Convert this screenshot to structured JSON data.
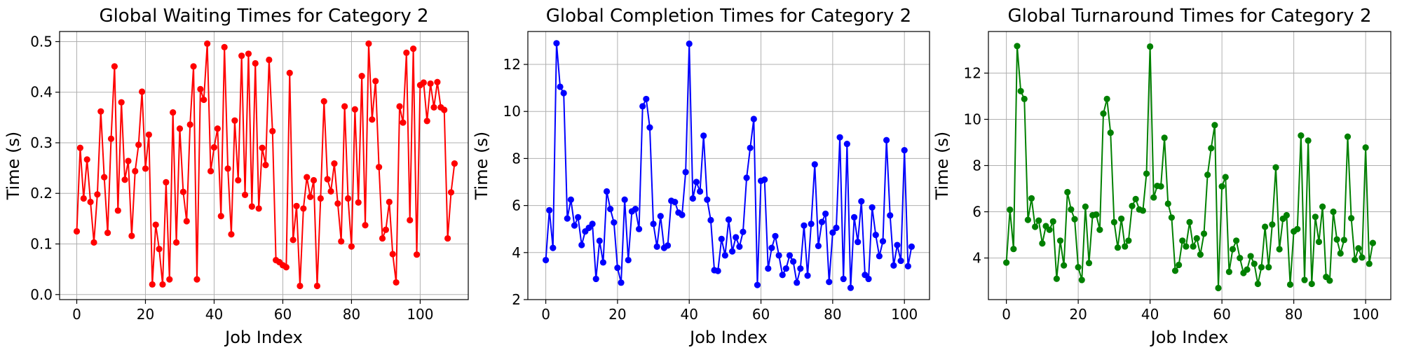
{
  "chart_data": [
    {
      "type": "line",
      "title": "Global Waiting Times for Category 2",
      "xlabel": "Job Index",
      "ylabel": "Time (s)",
      "xlim": [
        -5,
        114
      ],
      "ylim": [
        -0.01,
        0.52
      ],
      "xticks": [
        0,
        20,
        40,
        60,
        80,
        100
      ],
      "yticks": [
        0.0,
        0.1,
        0.2,
        0.3,
        0.4,
        0.5
      ],
      "ytick_decimals": 1,
      "grid": true,
      "series": [
        {
          "color": "#ff0000",
          "marker": "circle",
          "values": [
            0.125,
            0.29,
            0.19,
            0.267,
            0.183,
            0.103,
            0.198,
            0.362,
            0.232,
            0.122,
            0.308,
            0.451,
            0.166,
            0.38,
            0.227,
            0.264,
            0.116,
            0.244,
            0.296,
            0.401,
            0.249,
            0.316,
            0.02,
            0.138,
            0.09,
            0.02,
            0.222,
            0.03,
            0.36,
            0.103,
            0.328,
            0.203,
            0.145,
            0.336,
            0.451,
            0.03,
            0.406,
            0.385,
            0.496,
            0.244,
            0.291,
            0.328,
            0.155,
            0.489,
            0.249,
            0.119,
            0.344,
            0.226,
            0.472,
            0.197,
            0.476,
            0.174,
            0.457,
            0.17,
            0.29,
            0.256,
            0.464,
            0.323,
            0.068,
            0.064,
            0.058,
            0.054,
            0.438,
            0.108,
            0.175,
            0.017,
            0.17,
            0.232,
            0.193,
            0.226,
            0.017,
            0.19,
            0.382,
            0.228,
            0.204,
            0.259,
            0.18,
            0.105,
            0.372,
            0.19,
            0.095,
            0.366,
            0.182,
            0.432,
            0.137,
            0.496,
            0.346,
            0.422,
            0.252,
            0.111,
            0.128,
            0.183,
            0.08,
            0.024,
            0.372,
            0.34,
            0.478,
            0.147,
            0.486,
            0.079,
            0.414,
            0.419,
            0.343,
            0.417,
            0.37,
            0.42,
            0.37,
            0.365,
            0.111,
            0.202,
            0.259
          ]
        }
      ]
    },
    {
      "type": "line",
      "title": "Global Completion Times for Category 2",
      "xlabel": "Job Index",
      "ylabel": "Time (s)",
      "xlim": [
        -5,
        107
      ],
      "ylim": [
        2.0,
        13.4
      ],
      "xticks": [
        0,
        20,
        40,
        60,
        80,
        100
      ],
      "yticks": [
        2,
        4,
        6,
        8,
        10,
        12
      ],
      "ytick_decimals": 0,
      "grid": true,
      "series": [
        {
          "color": "#0000ff",
          "marker": "circle",
          "values": [
            3.68,
            5.8,
            4.2,
            12.9,
            11.05,
            10.78,
            5.45,
            6.25,
            5.15,
            5.5,
            4.32,
            4.9,
            5.05,
            5.22,
            2.88,
            4.5,
            3.58,
            6.6,
            5.85,
            5.28,
            3.35,
            2.72,
            6.25,
            3.68,
            5.75,
            5.85,
            5.0,
            10.22,
            10.53,
            9.32,
            5.22,
            4.25,
            5.55,
            4.2,
            4.3,
            6.2,
            6.15,
            5.7,
            5.6,
            7.42,
            12.88,
            6.3,
            7.0,
            6.6,
            8.97,
            6.25,
            5.38,
            3.25,
            3.22,
            4.58,
            3.88,
            5.4,
            4.05,
            4.65,
            4.25,
            4.88,
            7.18,
            8.45,
            9.68,
            2.62,
            7.05,
            7.1,
            3.32,
            4.2,
            4.7,
            3.88,
            3.05,
            3.32,
            3.88,
            3.62,
            2.72,
            3.32,
            5.15,
            3.02,
            5.22,
            7.75,
            4.28,
            5.3,
            5.65,
            2.75,
            4.85,
            5.05,
            8.9,
            2.88,
            8.62,
            2.5,
            5.5,
            4.45,
            6.18,
            3.05,
            2.88,
            5.92,
            4.75,
            3.85,
            4.48,
            8.78,
            5.58,
            3.45,
            4.32,
            3.65,
            8.35,
            3.42,
            4.25
          ]
        }
      ]
    },
    {
      "type": "line",
      "title": "Global Turnaround Times for Category 2",
      "xlabel": "Job Index",
      "ylabel": "Time (s)",
      "xlim": [
        -5,
        107
      ],
      "ylim": [
        2.2,
        13.8
      ],
      "xticks": [
        0,
        20,
        40,
        60,
        80,
        100
      ],
      "yticks": [
        4,
        6,
        8,
        10,
        12
      ],
      "ytick_decimals": 0,
      "grid": true,
      "series": [
        {
          "color": "#008000",
          "marker": "circle",
          "values": [
            3.8,
            6.09,
            4.39,
            13.17,
            11.22,
            10.88,
            5.65,
            6.58,
            5.35,
            5.62,
            4.63,
            5.38,
            5.22,
            5.58,
            3.1,
            4.75,
            3.68,
            6.85,
            6.1,
            5.68,
            3.6,
            3.05,
            6.22,
            3.78,
            5.85,
            5.88,
            5.22,
            10.25,
            10.88,
            9.42,
            5.55,
            4.45,
            5.7,
            4.5,
            4.75,
            6.25,
            6.55,
            6.1,
            6.05,
            7.65,
            13.15,
            6.62,
            7.12,
            7.1,
            9.2,
            6.35,
            5.75,
            3.45,
            3.7,
            4.75,
            4.5,
            5.55,
            4.5,
            4.85,
            4.15,
            5.05,
            7.6,
            8.75,
            9.75,
            2.7,
            7.1,
            7.5,
            3.4,
            4.38,
            4.75,
            4.0,
            3.35,
            3.5,
            4.08,
            3.75,
            2.88,
            3.6,
            5.35,
            3.6,
            5.45,
            7.92,
            4.38,
            5.7,
            5.85,
            2.85,
            5.15,
            5.25,
            9.3,
            3.05,
            9.08,
            2.88,
            5.78,
            4.7,
            6.22,
            3.18,
            3.02,
            6.0,
            4.8,
            4.2,
            4.78,
            9.25,
            5.72,
            3.92,
            4.42,
            4.02,
            8.78,
            3.75,
            4.65
          ]
        }
      ]
    }
  ]
}
